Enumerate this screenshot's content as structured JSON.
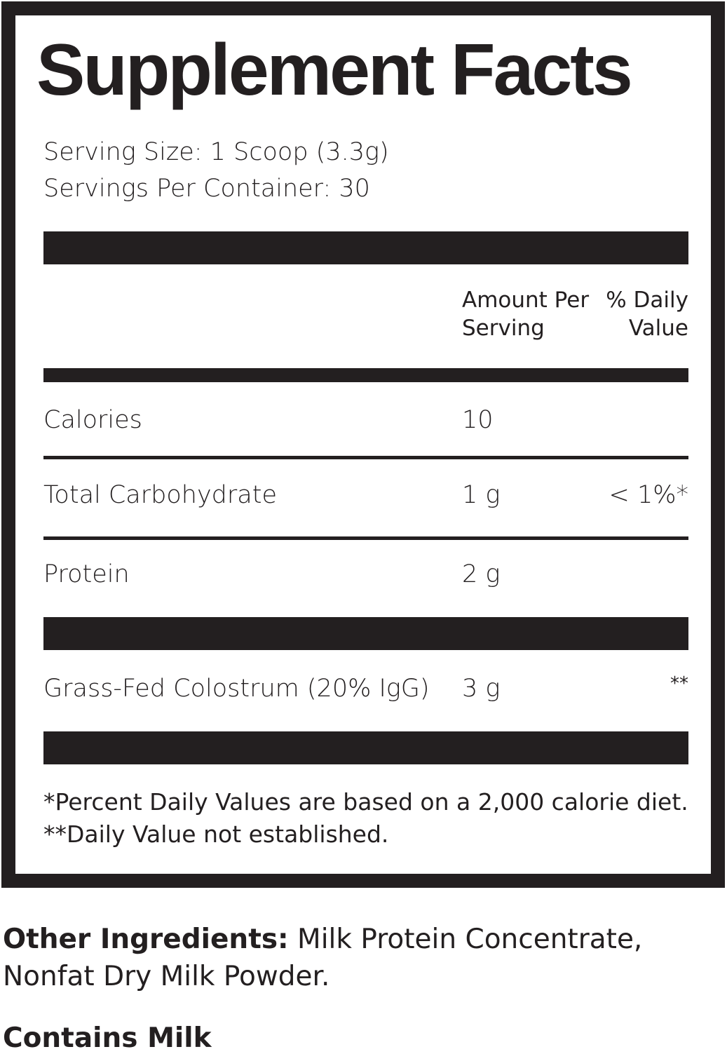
{
  "title": "Supplement Facts",
  "serving_size": "Serving Size: 1 Scoop (3.3g)",
  "servings_per_container": "Servings Per Container: 30",
  "header": {
    "amount_line1": "Amount Per",
    "amount_line2": "Serving",
    "dv_line1": "% Daily",
    "dv_line2": "Value"
  },
  "rows": [
    {
      "name": "Calories",
      "amount": "10",
      "dv": ""
    },
    {
      "name": "Total Carbohydrate",
      "amount": "1 g",
      "dv": "< 1%*"
    },
    {
      "name": "Protein",
      "amount": "2 g",
      "dv": ""
    },
    {
      "name": "Grass-Fed Colostrum (20% IgG)",
      "amount": "3 g",
      "dv": "**"
    }
  ],
  "footnotes": [
    "*Percent Daily Values are based on a 2,000 calorie diet.",
    "**Daily Value not established."
  ],
  "other_ingredients": {
    "label": "Other Ingredients:",
    "line1": " Milk Protein Concentrate,",
    "line2": "Nonfat Dry Milk Powder."
  },
  "allergen": "Contains Milk",
  "colors": {
    "ink": "#231f20",
    "background": "#ffffff"
  }
}
